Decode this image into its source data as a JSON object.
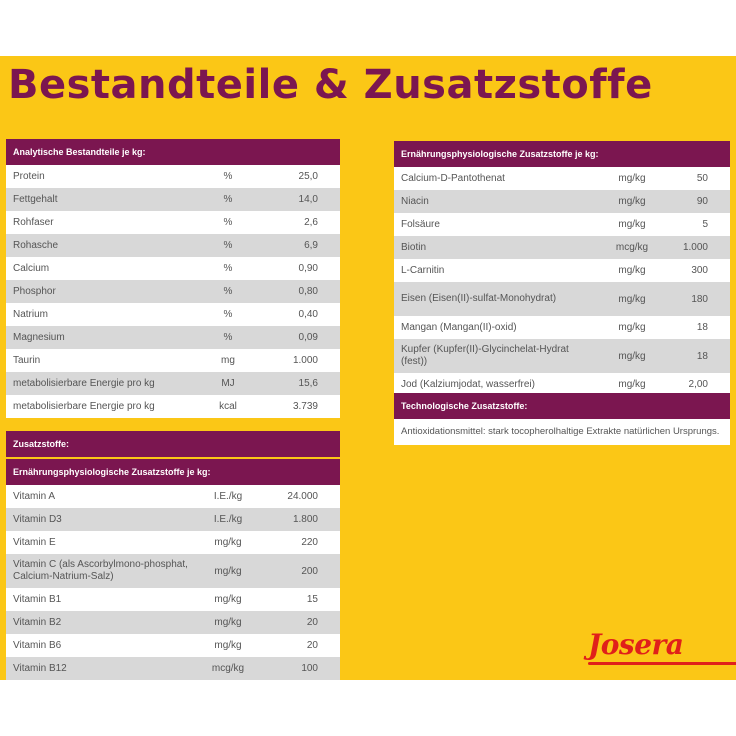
{
  "title": "Bestandteile & Zusatzstoffe",
  "colors": {
    "panel": "#fbc716",
    "header": "#7b1650",
    "logo": "#e0201a"
  },
  "analytical": {
    "header": "Analytische Bestandteile je kg:",
    "rows": [
      {
        "name": "Protein",
        "unit": "%",
        "value": "25,0"
      },
      {
        "name": "Fettgehalt",
        "unit": "%",
        "value": "14,0"
      },
      {
        "name": "Rohfaser",
        "unit": "%",
        "value": "2,6"
      },
      {
        "name": "Rohasche",
        "unit": "%",
        "value": "6,9"
      },
      {
        "name": "Calcium",
        "unit": "%",
        "value": "0,90"
      },
      {
        "name": "Phosphor",
        "unit": "%",
        "value": "0,80"
      },
      {
        "name": "Natrium",
        "unit": "%",
        "value": "0,40"
      },
      {
        "name": "Magnesium",
        "unit": "%",
        "value": "0,09"
      },
      {
        "name": "Taurin",
        "unit": "mg",
        "value": "1.000"
      },
      {
        "name": "metabolisierbare Energie pro kg",
        "unit": "MJ",
        "value": "15,6"
      },
      {
        "name": "metabolisierbare Energie pro kg",
        "unit": "kcal",
        "value": "3.739"
      }
    ]
  },
  "additives": {
    "header": "Zusatzstoffe:",
    "subheader": "Ernährungsphysiologische Zusatzstoffe je kg:",
    "rows": [
      {
        "name": "Vitamin A",
        "unit": "I.E./kg",
        "value": "24.000"
      },
      {
        "name": "Vitamin D3",
        "unit": "I.E./kg",
        "value": "1.800"
      },
      {
        "name": "Vitamin E",
        "unit": "mg/kg",
        "value": "220"
      },
      {
        "name": "Vitamin C (als Ascorbylmono-phosphat, Calcium-Natrium-Salz)",
        "unit": "mg/kg",
        "value": "200"
      },
      {
        "name": "Vitamin B1",
        "unit": "mg/kg",
        "value": "15"
      },
      {
        "name": "Vitamin B2",
        "unit": "mg/kg",
        "value": "20"
      },
      {
        "name": "Vitamin B6",
        "unit": "mg/kg",
        "value": "20"
      },
      {
        "name": "Vitamin B12",
        "unit": "mcg/kg",
        "value": "100"
      }
    ]
  },
  "nutritional": {
    "header": "Ernährungsphysiologische Zusatzstoffe je kg:",
    "rows": [
      {
        "name": "Calcium-D-Pantothenat",
        "unit": "mg/kg",
        "value": "50"
      },
      {
        "name": "Niacin",
        "unit": "mg/kg",
        "value": "90"
      },
      {
        "name": "Folsäure",
        "unit": "mg/kg",
        "value": "5"
      },
      {
        "name": "Biotin",
        "unit": "mcg/kg",
        "value": "1.000"
      },
      {
        "name": "L-Carnitin",
        "unit": "mg/kg",
        "value": "300"
      },
      {
        "name": "Eisen (Eisen(II)-sulfat-Monohydrat)",
        "unit": "mg/kg",
        "value": "180"
      },
      {
        "name": "Mangan (Mangan(II)-oxid)",
        "unit": "mg/kg",
        "value": "18"
      },
      {
        "name": "Kupfer (Kupfer(II)-Glycinchelat-Hydrat (fest))",
        "unit": "mg/kg",
        "value": "18"
      },
      {
        "name": "Jod (Kalziumjodat, wasserfrei)",
        "unit": "mg/kg",
        "value": "2,00"
      }
    ]
  },
  "technological": {
    "header": "Technologische Zusatzstoffe:",
    "text": "Antioxidationsmittel: stark tocopherolhaltige Extrakte natürlichen Ursprungs."
  },
  "logo": {
    "text": "Josera"
  }
}
